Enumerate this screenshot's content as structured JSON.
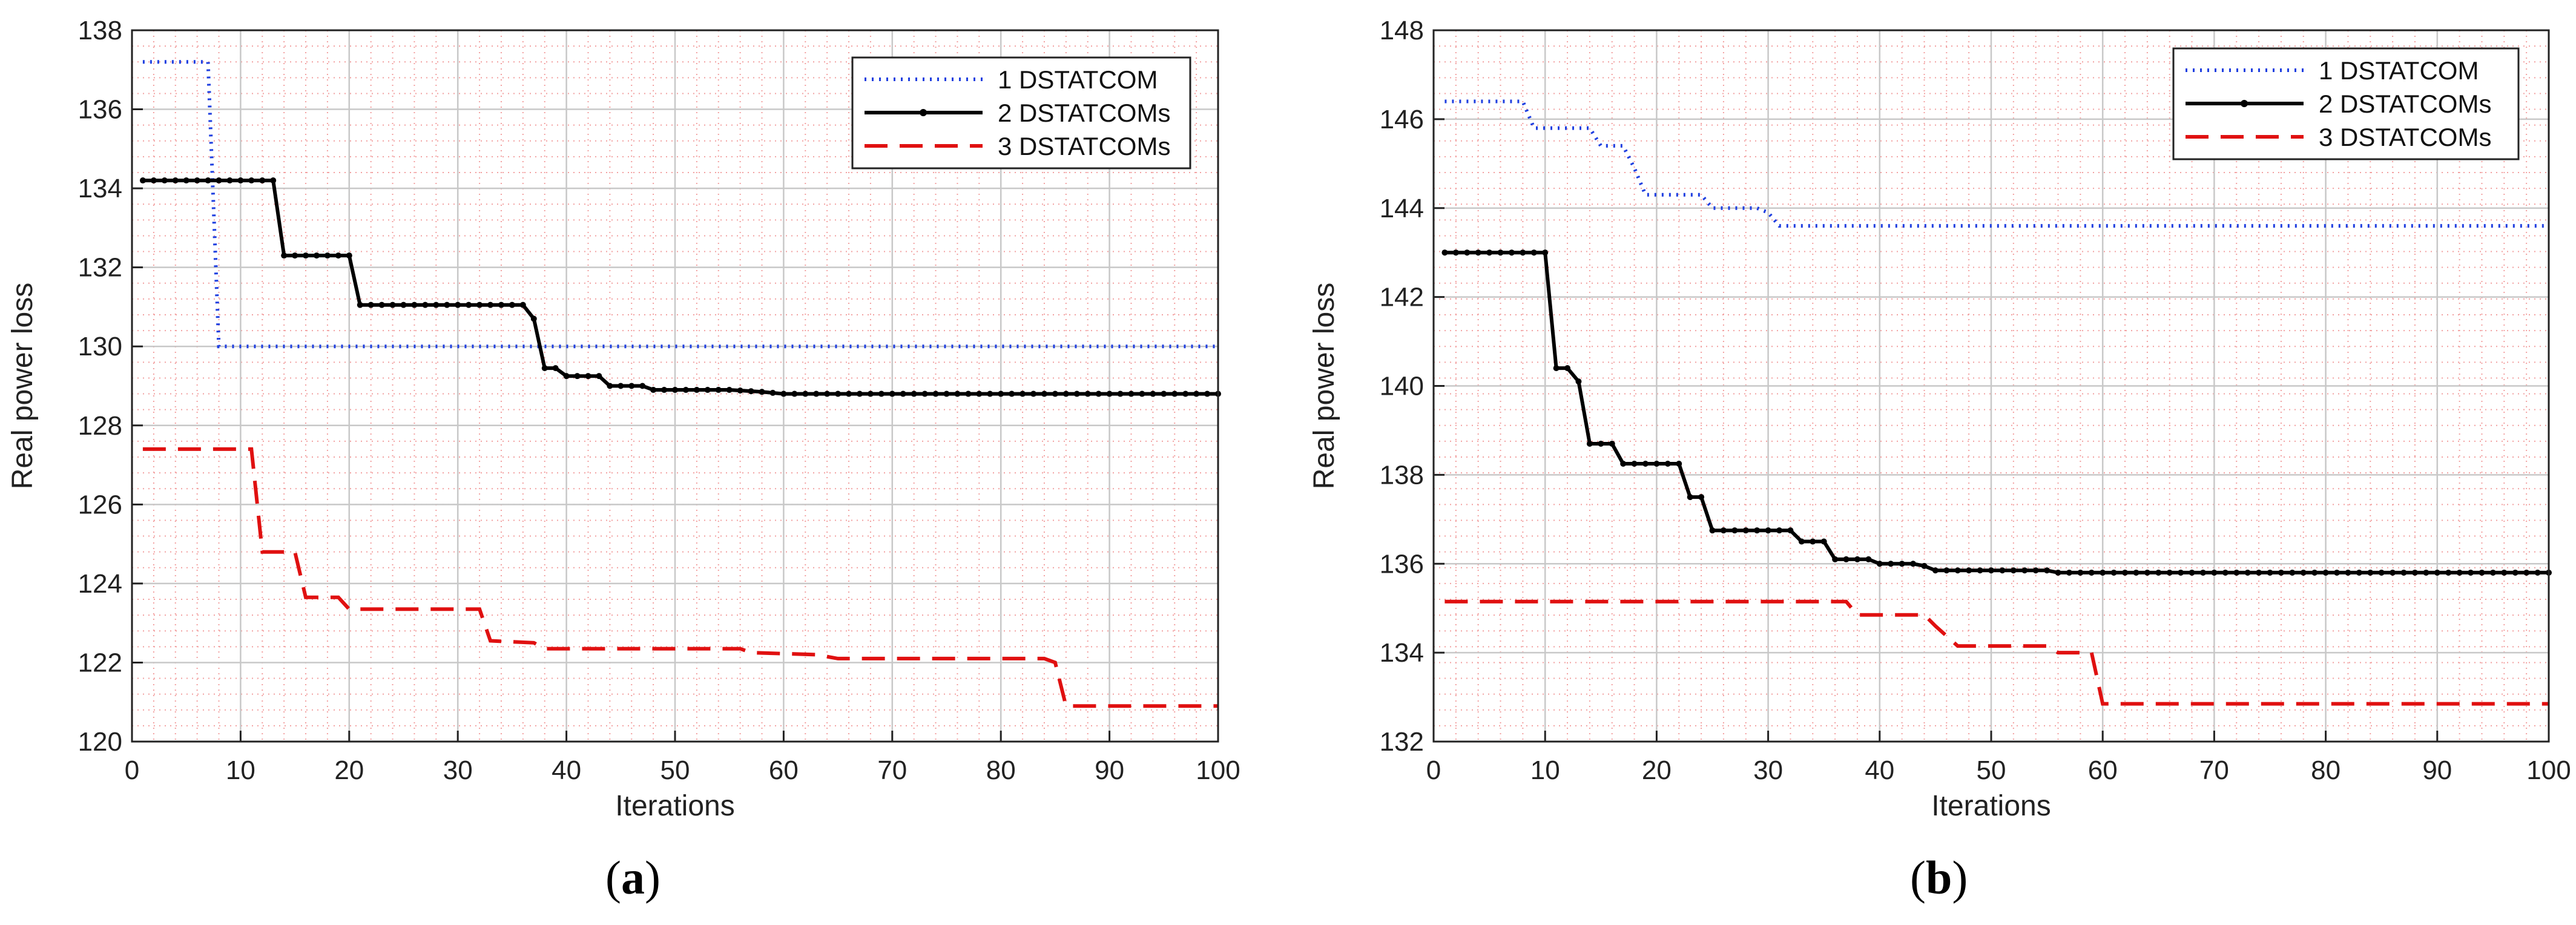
{
  "chart_data": [
    {
      "type": "line",
      "panel_label": "a",
      "xlabel": "Iterations",
      "ylabel": "Real power loss",
      "xlim": [
        0,
        100
      ],
      "ylim": [
        120,
        138
      ],
      "xticks": [
        0,
        10,
        20,
        30,
        40,
        50,
        60,
        70,
        80,
        90,
        100
      ],
      "yticks": [
        120,
        122,
        124,
        126,
        128,
        130,
        132,
        134,
        136,
        138
      ],
      "grid": true,
      "legend": "top-right",
      "series": [
        {
          "name": "1 DSTATCOM",
          "style": "dotted",
          "color": "#1f3fe0",
          "marker": false,
          "points": [
            [
              1,
              137.2
            ],
            [
              7,
              137.2
            ],
            [
              8,
              130.0
            ],
            [
              100,
              130.0
            ]
          ]
        },
        {
          "name": "2 DSTATCOMs",
          "style": "solid-dot",
          "color": "#000000",
          "marker": true,
          "points": [
            [
              1,
              134.2
            ],
            [
              13,
              134.2
            ],
            [
              14,
              132.3
            ],
            [
              20,
              132.3
            ],
            [
              21,
              131.05
            ],
            [
              36,
              131.05
            ],
            [
              37,
              130.7
            ],
            [
              38,
              129.45
            ],
            [
              39,
              129.45
            ],
            [
              40,
              129.25
            ],
            [
              43,
              129.25
            ],
            [
              44,
              129.0
            ],
            [
              47,
              129.0
            ],
            [
              48,
              128.9
            ],
            [
              55,
              128.9
            ],
            [
              58,
              128.85
            ],
            [
              60,
              128.8
            ],
            [
              100,
              128.8
            ]
          ]
        },
        {
          "name": "3 DSTATCOMs",
          "style": "dashed",
          "color": "#e01010",
          "marker": false,
          "points": [
            [
              1,
              127.4
            ],
            [
              11,
              127.4
            ],
            [
              12,
              124.8
            ],
            [
              15,
              124.8
            ],
            [
              16,
              123.65
            ],
            [
              19,
              123.65
            ],
            [
              20,
              123.35
            ],
            [
              32,
              123.35
            ],
            [
              33,
              122.55
            ],
            [
              37,
              122.5
            ],
            [
              38,
              122.35
            ],
            [
              56,
              122.35
            ],
            [
              57,
              122.25
            ],
            [
              63,
              122.2
            ],
            [
              65,
              122.1
            ],
            [
              84,
              122.1
            ],
            [
              85,
              122.0
            ],
            [
              86,
              120.9
            ],
            [
              100,
              120.9
            ]
          ]
        }
      ]
    },
    {
      "type": "line",
      "panel_label": "b",
      "xlabel": "Iterations",
      "ylabel": "Real power loss",
      "xlim": [
        0,
        100
      ],
      "ylim": [
        132,
        148
      ],
      "xticks": [
        0,
        10,
        20,
        30,
        40,
        50,
        60,
        70,
        80,
        90,
        100
      ],
      "yticks": [
        132,
        134,
        136,
        138,
        140,
        142,
        144,
        146,
        148
      ],
      "grid": true,
      "legend": "top-right",
      "series": [
        {
          "name": "1 DSTATCOM",
          "style": "dotted",
          "color": "#1f3fe0",
          "marker": false,
          "points": [
            [
              1,
              146.4
            ],
            [
              8,
              146.4
            ],
            [
              9,
              145.8
            ],
            [
              14,
              145.8
            ],
            [
              15,
              145.4
            ],
            [
              17,
              145.4
            ],
            [
              18,
              144.9
            ],
            [
              19,
              144.3
            ],
            [
              24,
              144.3
            ],
            [
              25,
              144.0
            ],
            [
              29,
              144.0
            ],
            [
              30,
              143.9
            ],
            [
              31,
              143.6
            ],
            [
              100,
              143.6
            ]
          ]
        },
        {
          "name": "2 DSTATCOMs",
          "style": "solid-dot",
          "color": "#000000",
          "marker": true,
          "points": [
            [
              1,
              143.0
            ],
            [
              10,
              143.0
            ],
            [
              11,
              140.4
            ],
            [
              12,
              140.4
            ],
            [
              13,
              140.1
            ],
            [
              14,
              138.7
            ],
            [
              16,
              138.7
            ],
            [
              17,
              138.25
            ],
            [
              22,
              138.25
            ],
            [
              23,
              137.5
            ],
            [
              24,
              137.5
            ],
            [
              25,
              136.75
            ],
            [
              32,
              136.75
            ],
            [
              33,
              136.5
            ],
            [
              35,
              136.5
            ],
            [
              36,
              136.1
            ],
            [
              39,
              136.1
            ],
            [
              40,
              136.0
            ],
            [
              43,
              136.0
            ],
            [
              44,
              135.95
            ],
            [
              45,
              135.85
            ],
            [
              55,
              135.85
            ],
            [
              56,
              135.8
            ],
            [
              100,
              135.8
            ]
          ]
        },
        {
          "name": "3 DSTATCOMs",
          "style": "dashed",
          "color": "#e01010",
          "marker": false,
          "points": [
            [
              1,
              135.15
            ],
            [
              37,
              135.15
            ],
            [
              38,
              134.85
            ],
            [
              44,
              134.85
            ],
            [
              45,
              134.6
            ],
            [
              47,
              134.15
            ],
            [
              55,
              134.15
            ],
            [
              56,
              134.0
            ],
            [
              59,
              134.0
            ],
            [
              60,
              132.85
            ],
            [
              100,
              132.85
            ]
          ]
        }
      ]
    }
  ]
}
